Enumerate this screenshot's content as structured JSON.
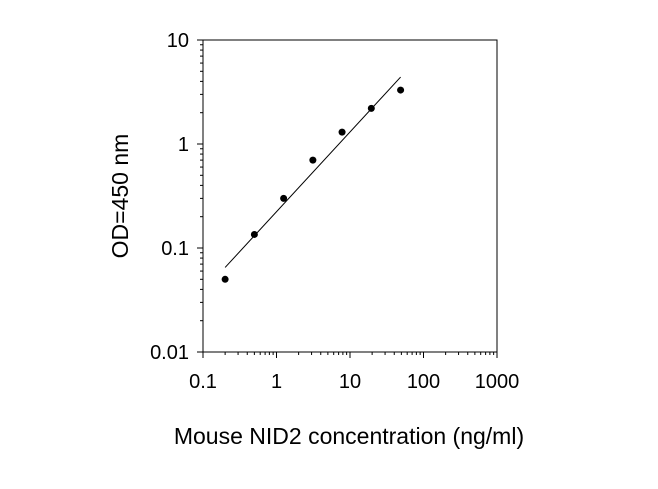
{
  "chart_data": {
    "type": "scatter",
    "title": "",
    "xlabel": "Mouse NID2 concentration (ng/ml)",
    "ylabel": "OD=450 nm",
    "x_scale": "log",
    "y_scale": "log",
    "xlim": [
      0.1,
      1000
    ],
    "ylim": [
      0.01,
      10
    ],
    "x_ticks": [
      0.1,
      1,
      10,
      100,
      1000
    ],
    "x_tick_labels": [
      "0.1",
      "1",
      "10",
      "100",
      "1000"
    ],
    "y_ticks": [
      0.01,
      0.1,
      1,
      10
    ],
    "y_tick_labels": [
      "0.01",
      "0.1",
      "1",
      "10"
    ],
    "grid": false,
    "legend": "none",
    "series": [
      {
        "type": "scatter",
        "x": [
          0.2,
          0.5,
          1.25,
          3.125,
          7.8,
          19.5,
          48.8
        ],
        "y": [
          0.05,
          0.135,
          0.3,
          0.7,
          1.3,
          2.2,
          3.3
        ],
        "color": "#000000"
      },
      {
        "type": "line",
        "x": [
          0.2,
          48.8
        ],
        "y": [
          0.065,
          4.4
        ],
        "color": "#000000"
      }
    ]
  }
}
